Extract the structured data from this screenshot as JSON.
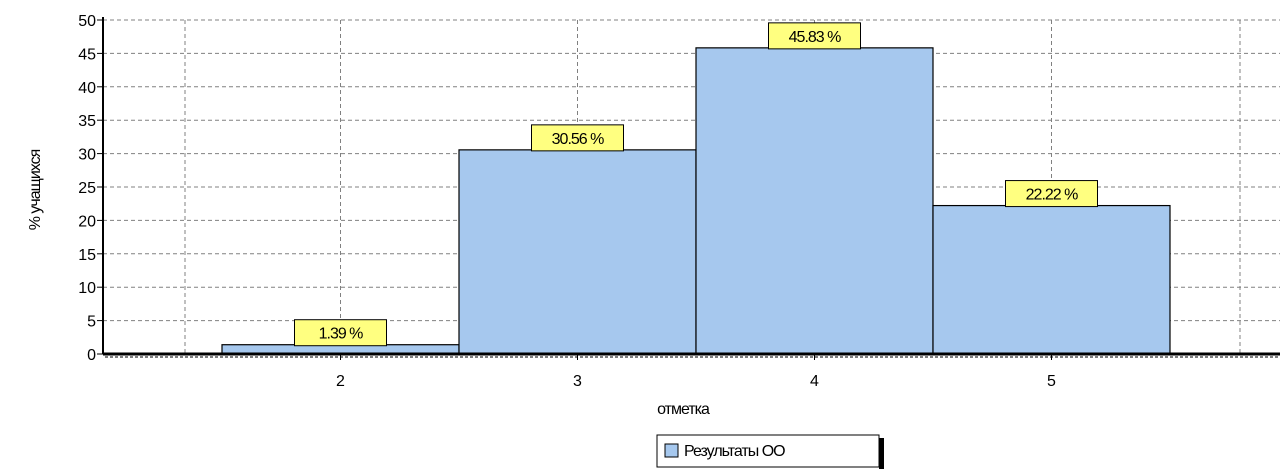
{
  "chart_data": {
    "type": "bar",
    "categories": [
      "2",
      "3",
      "4",
      "5"
    ],
    "series": [
      {
        "name": "Результаты ОО",
        "values": [
          1.39,
          30.56,
          45.83,
          22.22
        ],
        "labels": [
          "1.39 %",
          "30.56 %",
          "45.83 %",
          "22.22 %"
        ]
      }
    ],
    "xlabel": "отметка",
    "ylabel": "% учащихся",
    "ylim": [
      0,
      50
    ],
    "yticks": [
      "0",
      "5",
      "10",
      "15",
      "20",
      "25",
      "30",
      "35",
      "40",
      "45",
      "50"
    ],
    "grid": true,
    "legend": "bottom-center",
    "colors": {
      "bar": "#a6c8ee",
      "label_background": "#ffff80",
      "grid": "#808080"
    }
  }
}
